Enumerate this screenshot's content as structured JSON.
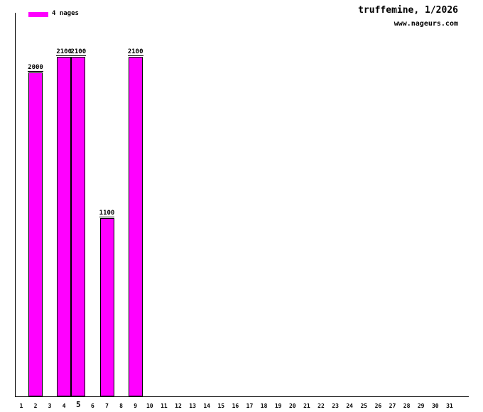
{
  "header": {
    "title": "truffemine, 1/2026",
    "url": "www.nageurs.com"
  },
  "legend": {
    "label": "4 nages",
    "color": "#ff00ff"
  },
  "chart_data": {
    "type": "bar",
    "title": "truffemine, 1/2026",
    "categories": [
      1,
      2,
      3,
      4,
      5,
      6,
      7,
      8,
      9,
      10,
      11,
      12,
      13,
      14,
      15,
      16,
      17,
      18,
      19,
      20,
      21,
      22,
      23,
      24,
      25,
      26,
      27,
      28,
      29,
      30,
      31
    ],
    "values": [
      0,
      2000,
      0,
      2100,
      2100,
      0,
      1100,
      0,
      2100,
      0,
      0,
      0,
      0,
      0,
      0,
      0,
      0,
      0,
      0,
      0,
      0,
      0,
      0,
      0,
      0,
      0,
      0,
      0,
      0,
      0,
      0
    ],
    "series_name": "4 nages",
    "bar_color": "#ff00ff",
    "bar_border_color": "#000000",
    "value_labels": [
      null,
      "2000",
      null,
      "2100",
      "2100",
      null,
      "1100",
      null,
      "2100",
      null,
      null,
      null,
      null,
      null,
      null,
      null,
      null,
      null,
      null,
      null,
      null,
      null,
      null,
      null,
      null,
      null,
      null,
      null,
      null,
      null,
      null
    ],
    "xlabel": "",
    "ylabel": "",
    "ylim": [
      0,
      2370
    ],
    "grid": false,
    "legend_position": "top-left",
    "highlighted_category": 5,
    "show_value_labels": true
  }
}
